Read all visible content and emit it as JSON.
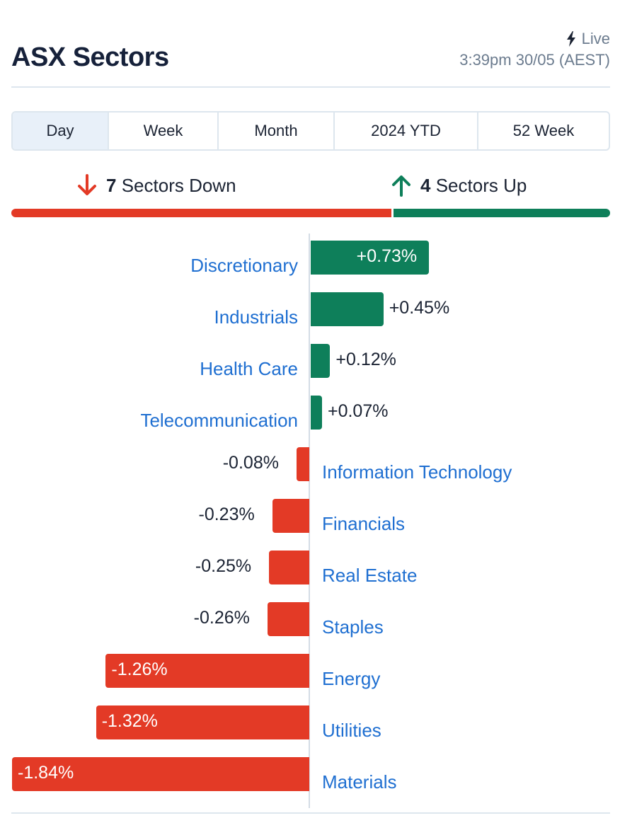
{
  "header": {
    "title": "ASX Sectors",
    "live_label": "Live",
    "timestamp": "3:39pm 30/05 (AEST)"
  },
  "tabs": [
    {
      "label": "Day",
      "active": true
    },
    {
      "label": "Week",
      "active": false
    },
    {
      "label": "Month",
      "active": false
    },
    {
      "label": "2024 YTD",
      "active": false
    },
    {
      "label": "52 Week",
      "active": false
    }
  ],
  "summary": {
    "down_count": "7",
    "down_text": "Sectors Down",
    "up_count": "4",
    "up_text": "Sectors Up",
    "down_color": "#e33a26",
    "up_color": "#0e7f5a"
  },
  "chart_data": {
    "type": "bar",
    "orientation": "horizontal-diverging",
    "categories": [
      "Discretionary",
      "Industrials",
      "Health Care",
      "Telecommunication",
      "Information Technology",
      "Financials",
      "Real Estate",
      "Staples",
      "Energy",
      "Utilities",
      "Materials"
    ],
    "values": [
      0.73,
      0.45,
      0.12,
      0.07,
      -0.08,
      -0.23,
      -0.25,
      -0.26,
      -1.26,
      -1.32,
      -1.84
    ],
    "value_labels": [
      "+0.73%",
      "+0.45%",
      "+0.12%",
      "+0.07%",
      "-0.08%",
      "-0.23%",
      "-0.25%",
      "-0.26%",
      "-1.26%",
      "-1.32%",
      "-1.84%"
    ],
    "unit": "%",
    "positive_color": "#0e7f5a",
    "negative_color": "#e33a26",
    "label_color": "#1f6fd1"
  }
}
